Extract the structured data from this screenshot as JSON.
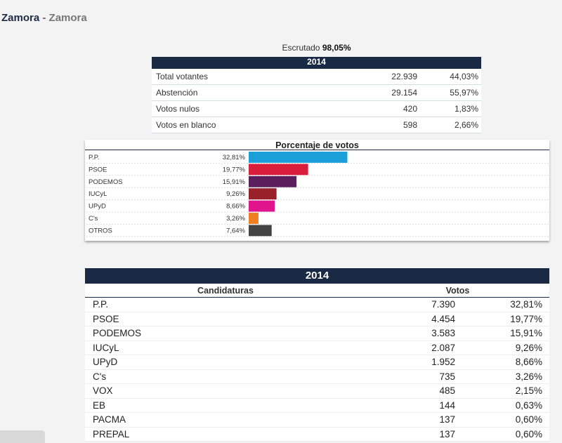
{
  "header": {
    "title": "Zamora",
    "separator": "-",
    "subtitle": "Zamora"
  },
  "escrutado": {
    "label": "Escrutado",
    "value": "98,05%"
  },
  "summary": {
    "year": "2014",
    "rows": [
      {
        "label": "Total votantes",
        "value": "22.939",
        "pct": "44,03%"
      },
      {
        "label": "Abstención",
        "value": "29.154",
        "pct": "55,97%"
      },
      {
        "label": "Votos nulos",
        "value": "420",
        "pct": "1,83%"
      },
      {
        "label": "Votos en blanco",
        "value": "598",
        "pct": "2,66%"
      }
    ]
  },
  "chart_data": {
    "type": "bar",
    "orientation": "horizontal",
    "title": "Porcentaje de votos",
    "categories": [
      "P.P.",
      "PSOE",
      "PODEMOS",
      "IUCyL",
      "UPyD",
      "C's",
      "OTROS"
    ],
    "values": [
      32.81,
      19.77,
      15.91,
      9.26,
      8.66,
      3.26,
      7.64
    ],
    "value_labels": [
      "32,81%",
      "19,77%",
      "15,91%",
      "9,26%",
      "8,66%",
      "3,26%",
      "7,64%"
    ],
    "colors": [
      "#1a9fd9",
      "#d81e3a",
      "#5c1f5e",
      "#98212a",
      "#e0148c",
      "#f07e23",
      "#444444"
    ],
    "xlim": [
      0,
      100
    ],
    "grid": true
  },
  "results": {
    "year": "2014",
    "col_candidaturas": "Candidaturas",
    "col_votos": "Votos",
    "rows": [
      {
        "name": "P.P.",
        "votes": "7.390",
        "pct": "32,81%"
      },
      {
        "name": "PSOE",
        "votes": "4.454",
        "pct": "19,77%"
      },
      {
        "name": "PODEMOS",
        "votes": "3.583",
        "pct": "15,91%"
      },
      {
        "name": "IUCyL",
        "votes": "2.087",
        "pct": "9,26%"
      },
      {
        "name": "UPyD",
        "votes": "1.952",
        "pct": "8,66%"
      },
      {
        "name": "C's",
        "votes": "735",
        "pct": "3,26%"
      },
      {
        "name": "VOX",
        "votes": "485",
        "pct": "2,15%"
      },
      {
        "name": "EB",
        "votes": "144",
        "pct": "0,63%"
      },
      {
        "name": "PACMA",
        "votes": "137",
        "pct": "0,60%"
      },
      {
        "name": "PREPAL",
        "votes": "137",
        "pct": "0,60%"
      }
    ]
  }
}
